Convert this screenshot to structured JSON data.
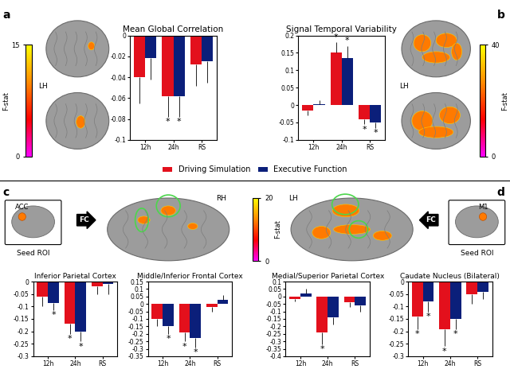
{
  "chart_data": [
    {
      "type": "bar",
      "title": "Mean Global Correlation",
      "categories": [
        "12h",
        "24h",
        "RS"
      ],
      "ylim": [
        -0.1,
        0
      ],
      "yticks": [
        -0.1,
        -0.08,
        -0.06,
        -0.04,
        -0.02,
        0
      ],
      "grid": false,
      "series": [
        {
          "name": "Driving Simulation",
          "color": "#e3101c",
          "values": [
            -0.04,
            -0.058,
            -0.028
          ],
          "errors": [
            0.025,
            0.02,
            0.02
          ],
          "annotations": [
            null,
            "*",
            null
          ]
        },
        {
          "name": "Executive Function",
          "color": "#0b1f7a",
          "values": [
            -0.022,
            -0.058,
            -0.025
          ],
          "errors": [
            0.02,
            0.02,
            0.02
          ],
          "annotations": [
            null,
            "*",
            null
          ]
        }
      ]
    },
    {
      "type": "bar",
      "title": "Signal Temporal Variability",
      "categories": [
        "12h",
        "24h",
        "RS"
      ],
      "ylim": [
        -0.1,
        0.2
      ],
      "yticks": [
        -0.1,
        -0.05,
        0,
        0.05,
        0.1,
        0.15,
        0.2
      ],
      "grid": false,
      "series": [
        {
          "name": "Driving Simulation",
          "color": "#e3101c",
          "values": [
            -0.015,
            0.15,
            -0.04
          ],
          "errors": [
            0.015,
            0.03,
            0.015
          ],
          "annotations": [
            null,
            "*",
            "*"
          ]
        },
        {
          "name": "Executive Function",
          "color": "#0b1f7a",
          "values": [
            0.003,
            0.135,
            -0.05
          ],
          "errors": [
            0.012,
            0.035,
            0.015
          ],
          "annotations": [
            null,
            "*",
            "*"
          ]
        }
      ]
    },
    {
      "type": "bar",
      "title": "Inferior Parietal Cortex",
      "categories": [
        "12h",
        "24h",
        "RS"
      ],
      "ylim": [
        -0.3,
        0
      ],
      "yticks": [
        -0.3,
        -0.25,
        -0.2,
        -0.15,
        -0.1,
        -0.05,
        0
      ],
      "grid": false,
      "series": [
        {
          "name": "Driving Simulation",
          "color": "#e3101c",
          "values": [
            -0.06,
            -0.17,
            -0.02
          ],
          "errors": [
            0.04,
            0.04,
            0.03
          ],
          "annotations": [
            null,
            "*",
            null
          ]
        },
        {
          "name": "Executive Function",
          "color": "#0b1f7a",
          "values": [
            -0.085,
            -0.2,
            -0.01
          ],
          "errors": [
            0.03,
            0.04,
            0.04
          ],
          "annotations": [
            "*",
            "*",
            null
          ]
        }
      ]
    },
    {
      "type": "bar",
      "title": "Middle/Inferior Frontal Cortex",
      "categories": [
        "12h",
        "24h",
        "RS"
      ],
      "ylim": [
        -0.35,
        0.15
      ],
      "yticks": [
        -0.35,
        -0.3,
        -0.25,
        -0.2,
        -0.15,
        -0.1,
        -0.05,
        0,
        0.05,
        0.1,
        0.15
      ],
      "grid": false,
      "series": [
        {
          "name": "Driving Simulation",
          "color": "#e3101c",
          "values": [
            -0.1,
            -0.19,
            -0.02
          ],
          "errors": [
            0.05,
            0.06,
            0.03
          ],
          "annotations": [
            null,
            "*",
            null
          ]
        },
        {
          "name": "Executive Function",
          "color": "#0b1f7a",
          "values": [
            -0.15,
            -0.23,
            0.03
          ],
          "errors": [
            0.05,
            0.06,
            0.03
          ],
          "annotations": [
            "*",
            "*",
            null
          ]
        }
      ]
    },
    {
      "type": "bar",
      "title": "Medial/Superior Parietal Cortex",
      "categories": [
        "12h",
        "24h",
        "RS"
      ],
      "ylim": [
        -0.4,
        0.1
      ],
      "yticks": [
        -0.4,
        -0.35,
        -0.3,
        -0.25,
        -0.2,
        -0.15,
        -0.1,
        -0.05,
        0,
        0.05,
        0.1
      ],
      "grid": false,
      "series": [
        {
          "name": "Driving Simulation",
          "color": "#e3101c",
          "values": [
            -0.015,
            -0.24,
            -0.04
          ],
          "errors": [
            0.02,
            0.08,
            0.03
          ],
          "annotations": [
            null,
            "*",
            null
          ]
        },
        {
          "name": "Executive Function",
          "color": "#0b1f7a",
          "values": [
            0.02,
            -0.14,
            -0.06
          ],
          "errors": [
            0.03,
            0.05,
            0.04
          ],
          "annotations": [
            null,
            null,
            null
          ]
        }
      ]
    },
    {
      "type": "bar",
      "title": "Caudate Nucleus (Bilateral)",
      "categories": [
        "12h",
        "24h",
        "RS"
      ],
      "ylim": [
        -0.3,
        0
      ],
      "yticks": [
        -0.3,
        -0.25,
        -0.2,
        -0.15,
        -0.1,
        -0.05,
        0
      ],
      "grid": false,
      "series": [
        {
          "name": "Driving Simulation",
          "color": "#e3101c",
          "values": [
            -0.14,
            -0.19,
            -0.05
          ],
          "errors": [
            0.05,
            0.07,
            0.04
          ],
          "annotations": [
            "*",
            "*",
            null
          ]
        },
        {
          "name": "Executive Function",
          "color": "#0b1f7a",
          "values": [
            -0.08,
            -0.15,
            -0.04
          ],
          "errors": [
            0.04,
            0.04,
            0.03
          ],
          "annotations": [
            "*",
            "*",
            null
          ]
        }
      ]
    }
  ],
  "panels": {
    "a": {
      "label": "a",
      "hemisphere": "LH",
      "colorbar": {
        "label": "F-stat",
        "lim": [
          0,
          15
        ],
        "ticks": [
          0,
          15
        ]
      }
    },
    "b": {
      "label": "b",
      "hemisphere": "LH",
      "colorbar": {
        "label": "F-stat",
        "lim": [
          0,
          40
        ],
        "ticks": [
          0,
          40
        ]
      }
    },
    "c": {
      "label": "c",
      "hemisphere": "RH",
      "seed": {
        "title": "Seed ROI",
        "region": "ACC",
        "connection": "FC"
      },
      "colorbar": {
        "label": "F-stat",
        "lim": [
          0,
          20
        ],
        "ticks": [
          0,
          20
        ]
      }
    },
    "d": {
      "label": "d",
      "hemisphere": "LH",
      "seed": {
        "title": "Seed ROI",
        "region": "M1",
        "connection": "FC"
      }
    }
  }
}
